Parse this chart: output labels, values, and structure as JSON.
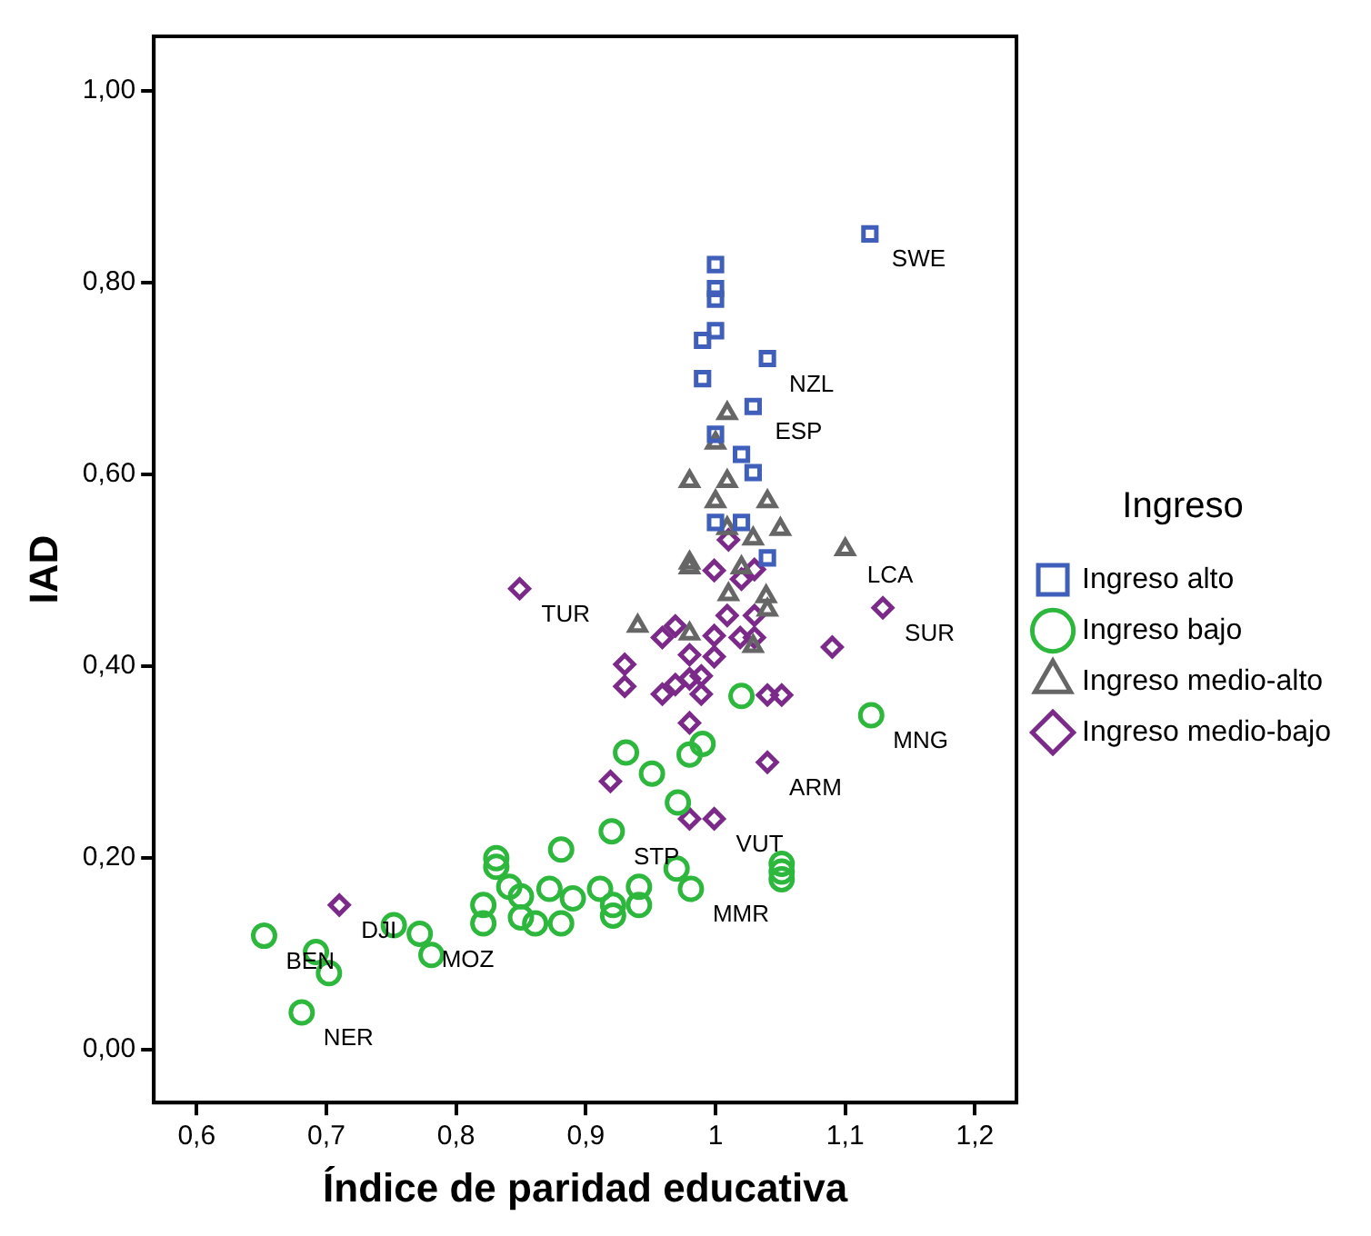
{
  "chart_data": {
    "type": "scatter",
    "xlabel": "Índice de paridad educativa",
    "ylabel": "IAD",
    "legend_title": "Ingreso",
    "legend": "right",
    "grid": false,
    "xlim": [
      0.567,
      1.232
    ],
    "ylim": [
      -0.055,
      1.057
    ],
    "xticks": [
      {
        "value": 0.6,
        "label": "0,6"
      },
      {
        "value": 0.7,
        "label": "0,7"
      },
      {
        "value": 0.8,
        "label": "0,8"
      },
      {
        "value": 0.9,
        "label": "0,9"
      },
      1,
      {
        "value": 1.1,
        "label": "1,1"
      },
      {
        "value": 1.2,
        "label": "1,2"
      }
    ],
    "yticks": [
      {
        "value": 0,
        "label": "0,00"
      },
      {
        "value": 0.2,
        "label": "0,20"
      },
      {
        "value": 0.4,
        "label": "0,40"
      },
      {
        "value": 0.6,
        "label": "0,60"
      },
      {
        "value": 0.8,
        "label": "0,80"
      },
      {
        "value": 1,
        "label": "1,00"
      }
    ],
    "series": [
      {
        "name": "Ingreso alto",
        "color": "#3f5fba",
        "marker": "square",
        "x": [
          1.119,
          1.0,
          1.0,
          1.0,
          1.0,
          0.99,
          1.04,
          0.99,
          1.029,
          1.0,
          1.02,
          1.029,
          1.0,
          1.02,
          1.04
        ],
        "values": [
          0.851,
          0.819,
          0.794,
          0.783,
          0.75,
          0.74,
          0.721,
          0.7,
          0.671,
          0.642,
          0.621,
          0.602,
          0.55,
          0.55,
          0.513
        ]
      },
      {
        "name": "Ingreso bajo",
        "color": "#2db83d",
        "marker": "circle",
        "x": [
          1.02,
          1.12,
          0.99,
          0.98,
          0.931,
          0.951,
          0.971,
          0.92,
          0.881,
          0.831,
          0.831,
          0.97,
          0.981,
          1.051,
          1.051,
          1.051,
          0.841,
          0.85,
          0.872,
          0.89,
          0.911,
          0.941,
          0.941,
          0.921,
          0.921,
          0.821,
          0.821,
          0.85,
          0.861,
          0.881,
          0.652,
          0.752,
          0.772,
          0.781,
          0.692,
          0.702,
          0.681
        ],
        "values": [
          0.369,
          0.349,
          0.319,
          0.308,
          0.31,
          0.288,
          0.258,
          0.228,
          0.209,
          0.2,
          0.191,
          0.189,
          0.168,
          0.194,
          0.186,
          0.178,
          0.17,
          0.16,
          0.168,
          0.158,
          0.168,
          0.17,
          0.151,
          0.151,
          0.14,
          0.151,
          0.132,
          0.138,
          0.132,
          0.132,
          0.119,
          0.13,
          0.121,
          0.099,
          0.102,
          0.08,
          0.039
        ]
      },
      {
        "name": "Ingreso medio-alto",
        "color": "#666666",
        "marker": "triangle",
        "x": [
          1.009,
          1.0,
          0.98,
          1.009,
          1.0,
          1.04,
          1.009,
          1.029,
          1.05,
          1.1,
          0.98,
          0.98,
          1.02,
          1.01,
          1.039,
          1.04,
          0.94,
          0.98,
          1.029
        ],
        "values": [
          0.664,
          0.633,
          0.593,
          0.593,
          0.572,
          0.572,
          0.544,
          0.533,
          0.543,
          0.522,
          0.508,
          0.503,
          0.503,
          0.475,
          0.473,
          0.459,
          0.442,
          0.434,
          0.421
        ]
      },
      {
        "name": "Ingreso medio-bajo",
        "color": "#7b2a8a",
        "marker": "diamond",
        "x": [
          0.849,
          1.01,
          0.999,
          1.02,
          1.03,
          1.129,
          1.009,
          1.03,
          0.969,
          0.959,
          0.999,
          1.019,
          1.03,
          1.09,
          0.98,
          0.999,
          0.93,
          0.93,
          0.959,
          0.969,
          0.98,
          0.989,
          0.989,
          1.04,
          1.051,
          0.98,
          1.04,
          0.919,
          0.98,
          0.999,
          0.71
        ],
        "values": [
          0.481,
          0.532,
          0.5,
          0.491,
          0.501,
          0.461,
          0.453,
          0.453,
          0.442,
          0.43,
          0.432,
          0.43,
          0.43,
          0.42,
          0.412,
          0.41,
          0.402,
          0.379,
          0.371,
          0.381,
          0.387,
          0.39,
          0.371,
          0.37,
          0.37,
          0.341,
          0.3,
          0.28,
          0.241,
          0.241,
          0.151
        ]
      }
    ],
    "annotations": [
      {
        "text": "SWE",
        "x": 1.119,
        "y": 0.851
      },
      {
        "text": "NZL",
        "x": 1.04,
        "y": 0.721
      },
      {
        "text": "ESP",
        "x": 1.029,
        "y": 0.671
      },
      {
        "text": "LCA",
        "x": 1.1,
        "y": 0.522
      },
      {
        "text": "TUR",
        "x": 0.849,
        "y": 0.481
      },
      {
        "text": "SUR",
        "x": 1.129,
        "y": 0.461
      },
      {
        "text": "MNG",
        "x": 1.12,
        "y": 0.349
      },
      {
        "text": "ARM",
        "x": 1.04,
        "y": 0.3
      },
      {
        "text": "VUT",
        "x": 0.999,
        "y": 0.241
      },
      {
        "text": "STP",
        "x": 0.92,
        "y": 0.228
      },
      {
        "text": "MMR",
        "x": 0.981,
        "y": 0.168
      },
      {
        "text": "DJI",
        "x": 0.71,
        "y": 0.151
      },
      {
        "text": "BEN",
        "x": 0.652,
        "y": 0.119
      },
      {
        "text": "MOZ",
        "x": 0.772,
        "y": 0.121
      },
      {
        "text": "NER",
        "x": 0.681,
        "y": 0.039
      }
    ]
  }
}
